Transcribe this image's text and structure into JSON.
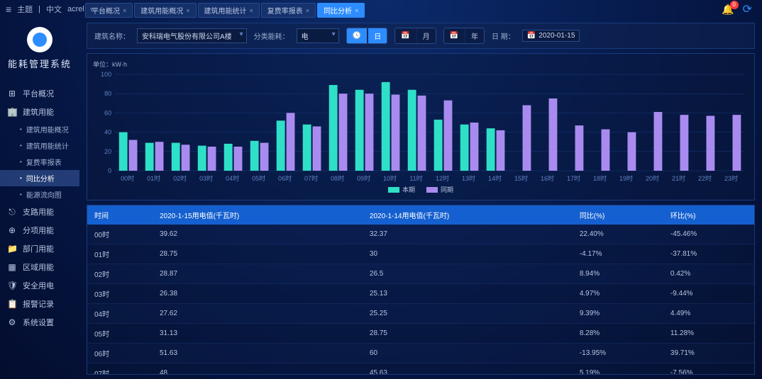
{
  "topbar": {
    "theme_label": "主题",
    "lang_label": "中文",
    "user": "acrel",
    "bell_count": "0"
  },
  "tabs": [
    {
      "label": "平台概况",
      "active": false
    },
    {
      "label": "建筑用能概况",
      "active": false
    },
    {
      "label": "建筑用能统计",
      "active": false
    },
    {
      "label": "复费率报表",
      "active": false
    },
    {
      "label": "同比分析",
      "active": true
    }
  ],
  "sidebar": {
    "title": "能耗管理系统",
    "items": [
      {
        "icon": "⊞",
        "label": "平台概况",
        "subs": []
      },
      {
        "icon": "🏢",
        "label": "建筑用能",
        "subs": [
          {
            "label": "建筑用能概况",
            "active": false
          },
          {
            "label": "建筑用能统计",
            "active": false
          },
          {
            "label": "复费率报表",
            "active": false
          },
          {
            "label": "同比分析",
            "active": true
          },
          {
            "label": "能源流向图",
            "active": false
          }
        ]
      },
      {
        "icon": "⎋",
        "label": "支路用能",
        "subs": []
      },
      {
        "icon": "⊕",
        "label": "分项用能",
        "subs": []
      },
      {
        "icon": "📁",
        "label": "部门用能",
        "subs": []
      },
      {
        "icon": "▦",
        "label": "区域用能",
        "subs": []
      },
      {
        "icon": "🛡",
        "label": "安全用电",
        "subs": []
      },
      {
        "icon": "📋",
        "label": "报警记录",
        "subs": []
      },
      {
        "icon": "⚙",
        "label": "系统设置",
        "subs": []
      }
    ]
  },
  "filters": {
    "building_label": "建筑名称：",
    "building_value": "安科瑞电气股份有限公司A楼",
    "category_label": "分类能耗：",
    "category_value": "电",
    "period_day": "日",
    "period_month": "月",
    "period_year": "年",
    "date_label": "日 期：",
    "date_value": "2020-01-15"
  },
  "chart": {
    "unit": "单位：kW·h",
    "type": "bar",
    "categories": [
      "00时",
      "01时",
      "02时",
      "03时",
      "04时",
      "05时",
      "06时",
      "07时",
      "08时",
      "09时",
      "10时",
      "11时",
      "12时",
      "13时",
      "14时",
      "15时",
      "16时",
      "17时",
      "18时",
      "19时",
      "20时",
      "21时",
      "22时",
      "23时"
    ],
    "series": [
      {
        "name": "本期",
        "color": "#2fe0c8",
        "values": [
          40,
          29,
          29,
          26,
          28,
          31,
          52,
          48,
          89,
          84,
          92,
          84,
          53,
          48,
          44,
          0,
          0,
          0,
          0,
          0,
          0,
          0,
          0,
          0
        ]
      },
      {
        "name": "同期",
        "color": "#a98bf0",
        "values": [
          32,
          30,
          27,
          25,
          25,
          29,
          60,
          46,
          80,
          80,
          79,
          78,
          73,
          50,
          42,
          68,
          75,
          47,
          43,
          40,
          61,
          58,
          57,
          58
        ]
      }
    ],
    "ylim": [
      0,
      100
    ],
    "ytick_step": 20,
    "grid_color": "#1a3a7a",
    "axis_color": "#6080c0",
    "label_fontsize": 9
  },
  "table": {
    "columns": [
      "时间",
      "2020-1-15用电值(千瓦时)",
      "2020-1-14用电值(千瓦时)",
      "同比(%)",
      "环比(%)"
    ],
    "rows": [
      [
        "00时",
        "39.62",
        "32.37",
        "22.40%",
        "-45.46%"
      ],
      [
        "01时",
        "28.75",
        "30",
        "-4.17%",
        "-37.81%"
      ],
      [
        "02时",
        "28.87",
        "26.5",
        "8.94%",
        "0.42%"
      ],
      [
        "03时",
        "26.38",
        "25.13",
        "4.97%",
        "-9.44%"
      ],
      [
        "04时",
        "27.62",
        "25.25",
        "9.39%",
        "4.49%"
      ],
      [
        "05时",
        "31.13",
        "28.75",
        "8.28%",
        "11.28%"
      ],
      [
        "06时",
        "51.63",
        "60",
        "-13.95%",
        "39.71%"
      ],
      [
        "07时",
        "48",
        "45.63",
        "5.19%",
        "-7.56%"
      ]
    ]
  }
}
